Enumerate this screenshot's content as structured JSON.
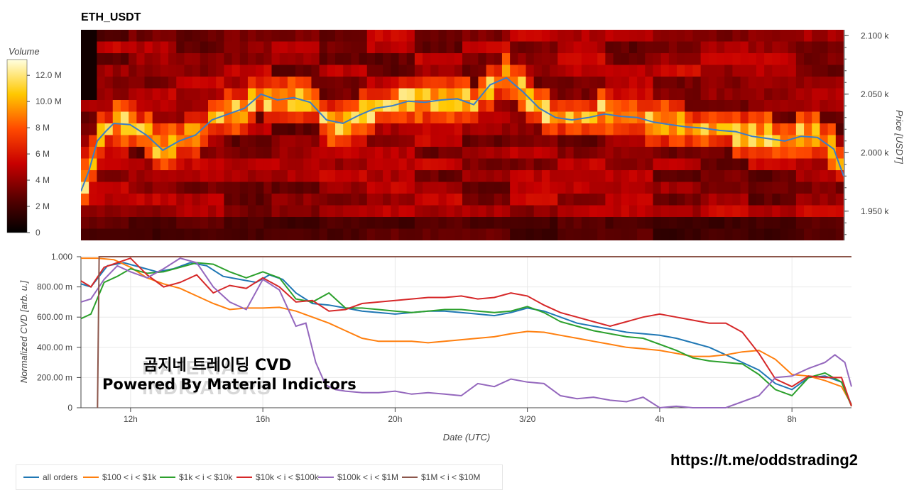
{
  "title": "ETH_USDT",
  "watermark": {
    "line1": "곰지네 트레이딩 CVD",
    "line2": "Powered By Material Indictors",
    "logo_line1": "MATERIAL",
    "logo_line2": "INDICATORS"
  },
  "link": "https://t.me/oddstrading2",
  "colors": {
    "all_orders": "#1f77b4",
    "bin1": "#ff7f0e",
    "bin2": "#2ca02c",
    "bin3": "#d62728",
    "bin4": "#9467bd",
    "bin5": "#8c564b"
  },
  "chart_data": [
    {
      "type": "heatmap",
      "title": "ETH_USDT",
      "xlabel": "",
      "ylabel": "Price [USDT]",
      "ylim": [
        1925,
        2105
      ],
      "yticks": [
        "2.100 k",
        "2.050 k",
        "2.000 k",
        "1.950 k"
      ],
      "ytick_values": [
        2100,
        2050,
        2000,
        1950
      ],
      "colorbar": {
        "label": "Volume",
        "ticks": [
          "12.0 M",
          "10.0 M",
          "8 M",
          "6 M",
          "4 M",
          "2 M",
          "0"
        ],
        "tick_values": [
          12,
          10,
          8,
          6,
          4,
          2,
          0
        ],
        "range": [
          0,
          13.2
        ]
      },
      "price_series": {
        "name": "price",
        "t": [
          10.5,
          10.75,
          11,
          11.25,
          11.5,
          12,
          12.5,
          13,
          13.5,
          14,
          14.5,
          15,
          15.5,
          16,
          16.5,
          17,
          17.5,
          18,
          18.5,
          19,
          19.5,
          20,
          20.5,
          21,
          21.5,
          22,
          22.5,
          23,
          23.5,
          24,
          24.5,
          25,
          25.5,
          26,
          26.5,
          27,
          27.5,
          28,
          28.5,
          29,
          29.5,
          30,
          30.5,
          31,
          31.5,
          32,
          32.5,
          33,
          33.5,
          33.8
        ],
        "price": [
          1967,
          1985,
          2010,
          2018,
          2025,
          2024,
          2015,
          2002,
          2010,
          2015,
          2028,
          2033,
          2038,
          2050,
          2045,
          2047,
          2043,
          2028,
          2025,
          2032,
          2038,
          2040,
          2044,
          2043,
          2045,
          2046,
          2041,
          2058,
          2064,
          2052,
          2038,
          2030,
          2028,
          2030,
          2033,
          2031,
          2030,
          2026,
          2024,
          2022,
          2021,
          2019,
          2018,
          2014,
          2012,
          2010,
          2014,
          2013,
          2003,
          1980
        ]
      }
    },
    {
      "type": "line",
      "title": "",
      "xlabel": "Date (UTC)",
      "ylabel": "Normalized CVD [arb. u.]",
      "xlim": [
        10.5,
        33.8
      ],
      "ylim": [
        0,
        1000
      ],
      "xticks": [
        "12h",
        "16h",
        "20h",
        "3/20",
        "4h",
        "8h"
      ],
      "xtick_values": [
        12,
        16,
        20,
        24,
        28,
        32
      ],
      "yticks": [
        "1.000",
        "800.00 m",
        "600.00 m",
        "400.00 m",
        "200.00 m",
        "0"
      ],
      "ytick_values": [
        1000,
        800,
        600,
        400,
        200,
        0
      ],
      "legend_position": "bottom-left",
      "series": [
        {
          "name": "all orders",
          "color_key": "all_orders",
          "x": [
            10.5,
            10.8,
            11.3,
            11.8,
            12.3,
            12.8,
            13.3,
            13.8,
            14.3,
            14.8,
            15.3,
            15.8,
            16.2,
            16.6,
            17.0,
            17.5,
            18.0,
            18.5,
            19.0,
            19.5,
            20.0,
            20.5,
            21.0,
            21.5,
            22.0,
            22.5,
            23.0,
            23.5,
            24.0,
            24.5,
            25.0,
            25.5,
            26.0,
            26.5,
            27.0,
            27.5,
            28.0,
            28.5,
            29.0,
            29.5,
            30.0,
            30.5,
            31.0,
            31.5,
            32.0,
            32.5,
            33.0,
            33.5,
            33.8
          ],
          "y": [
            820,
            800,
            940,
            960,
            930,
            900,
            920,
            960,
            940,
            870,
            850,
            830,
            880,
            850,
            760,
            690,
            680,
            660,
            640,
            630,
            620,
            630,
            640,
            640,
            630,
            620,
            610,
            630,
            660,
            640,
            600,
            560,
            540,
            520,
            500,
            490,
            480,
            460,
            430,
            400,
            350,
            300,
            250,
            160,
            120,
            200,
            210,
            170,
            20
          ]
        },
        {
          "name": "$100 < i < $1k",
          "color_key": "bin1",
          "x": [
            10.5,
            11.0,
            11.5,
            12.0,
            12.5,
            13.0,
            13.5,
            14.0,
            14.5,
            15.0,
            15.5,
            16.0,
            16.5,
            17.0,
            17.5,
            18.0,
            18.5,
            19.0,
            19.5,
            20.0,
            20.5,
            21.0,
            21.5,
            22.0,
            22.5,
            23.0,
            23.5,
            24.0,
            24.5,
            25.0,
            25.5,
            26.0,
            26.5,
            27.0,
            27.5,
            28.0,
            28.5,
            29.0,
            29.5,
            30.0,
            30.5,
            31.0,
            31.5,
            32.0,
            32.5,
            33.0,
            33.5,
            33.8
          ],
          "y": [
            990,
            990,
            980,
            930,
            860,
            820,
            790,
            740,
            690,
            650,
            660,
            660,
            665,
            640,
            600,
            560,
            510,
            460,
            440,
            440,
            440,
            430,
            440,
            450,
            460,
            470,
            490,
            505,
            500,
            480,
            460,
            440,
            420,
            400,
            390,
            380,
            360,
            340,
            340,
            350,
            370,
            380,
            320,
            220,
            210,
            180,
            140,
            20
          ]
        },
        {
          "name": "$1k < i < $10k",
          "color_key": "bin2",
          "x": [
            10.5,
            10.8,
            11.2,
            11.6,
            12.0,
            12.5,
            13.0,
            13.5,
            14.0,
            14.5,
            15.0,
            15.5,
            16.0,
            16.5,
            17.0,
            17.5,
            18.0,
            18.5,
            19.0,
            19.5,
            20.0,
            20.5,
            21.0,
            21.5,
            22.0,
            22.5,
            23.0,
            23.5,
            24.0,
            24.5,
            25.0,
            25.5,
            26.0,
            26.5,
            27.0,
            27.5,
            28.0,
            28.5,
            29.0,
            29.5,
            30.0,
            30.5,
            31.0,
            31.5,
            32.0,
            32.5,
            33.0,
            33.5,
            33.8
          ],
          "y": [
            590,
            620,
            830,
            870,
            920,
            890,
            900,
            930,
            960,
            950,
            900,
            860,
            900,
            860,
            720,
            700,
            760,
            660,
            660,
            650,
            640,
            630,
            640,
            650,
            650,
            640,
            630,
            640,
            670,
            630,
            570,
            540,
            510,
            490,
            470,
            460,
            420,
            380,
            330,
            310,
            300,
            290,
            220,
            120,
            80,
            200,
            230,
            170,
            10
          ]
        },
        {
          "name": "$10k < i < $100k",
          "color_key": "bin3",
          "x": [
            10.5,
            10.8,
            11.2,
            11.6,
            12.0,
            12.5,
            13.0,
            13.5,
            14.0,
            14.5,
            15.0,
            15.5,
            16.0,
            16.5,
            17.0,
            17.5,
            18.0,
            18.5,
            19.0,
            19.5,
            20.0,
            20.5,
            21.0,
            21.5,
            22.0,
            22.5,
            23.0,
            23.5,
            24.0,
            24.5,
            25.0,
            25.5,
            26.0,
            26.5,
            27.0,
            27.5,
            28.0,
            28.5,
            29.0,
            29.5,
            30.0,
            30.5,
            31.0,
            31.5,
            32.0,
            32.5,
            33.0,
            33.5,
            33.8
          ],
          "y": [
            840,
            800,
            930,
            960,
            990,
            880,
            800,
            830,
            880,
            760,
            810,
            790,
            860,
            800,
            700,
            710,
            640,
            650,
            690,
            700,
            710,
            720,
            730,
            730,
            740,
            720,
            730,
            760,
            740,
            680,
            630,
            600,
            570,
            540,
            570,
            600,
            620,
            600,
            580,
            560,
            560,
            500,
            360,
            190,
            140,
            210,
            200,
            200,
            10
          ]
        },
        {
          "name": "$100k < i < $1M",
          "color_key": "bin4",
          "x": [
            10.5,
            10.8,
            11.2,
            11.6,
            12.0,
            12.5,
            13.0,
            13.5,
            14.0,
            14.5,
            15.0,
            15.5,
            16.0,
            16.5,
            17.0,
            17.3,
            17.6,
            17.9,
            18.2,
            18.5,
            19.0,
            19.5,
            20.0,
            20.5,
            21.0,
            21.5,
            22.0,
            22.5,
            23.0,
            23.5,
            24.0,
            24.5,
            25.0,
            25.5,
            26.0,
            26.5,
            27.0,
            27.5,
            28.0,
            28.5,
            29.0,
            29.5,
            30.0,
            30.5,
            31.0,
            31.5,
            32.0,
            32.5,
            33.0,
            33.3,
            33.6,
            33.8
          ],
          "y": [
            700,
            720,
            850,
            940,
            900,
            860,
            920,
            990,
            960,
            800,
            700,
            650,
            850,
            780,
            540,
            560,
            300,
            150,
            120,
            110,
            100,
            100,
            110,
            90,
            100,
            90,
            80,
            160,
            140,
            190,
            170,
            160,
            80,
            60,
            70,
            50,
            40,
            70,
            0,
            10,
            0,
            0,
            0,
            40,
            80,
            200,
            210,
            260,
            300,
            350,
            300,
            140
          ]
        },
        {
          "name": "$1M < i < $10M",
          "color_key": "bin5",
          "x": [
            11.0,
            11.05,
            11.1,
            12.0,
            16.0,
            20.0,
            24.0,
            28.0,
            32.0,
            33.8
          ],
          "y": [
            0,
            1000,
            1000,
            1000,
            1000,
            1000,
            1000,
            1000,
            1000,
            1000
          ]
        }
      ]
    }
  ]
}
